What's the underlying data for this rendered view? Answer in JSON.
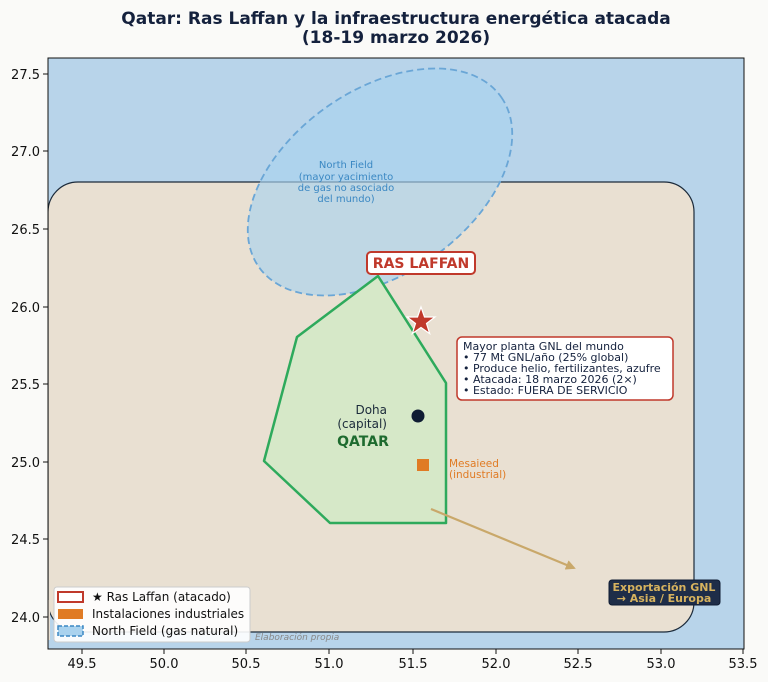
{
  "title_line1": "Qatar: Ras Laffan y la infraestructura energética atacada",
  "title_line2": "(18-19 marzo 2026)",
  "axes": {
    "x_ticks": [
      "49.5",
      "50.0",
      "50.5",
      "51.0",
      "51.5",
      "52.0",
      "52.5",
      "53.0",
      "53.5"
    ],
    "y_ticks": [
      "27.5",
      "27.0",
      "26.5",
      "26.0",
      "25.5",
      "25.0",
      "24.5",
      "24.0"
    ]
  },
  "north_field": {
    "lines": [
      "North Field",
      "(mayor yacimiento",
      "de gas no asociado",
      "del mundo)"
    ]
  },
  "ras_laffan": {
    "label": "RAS LAFFAN"
  },
  "info_box": {
    "lines": [
      "Mayor planta GNL del mundo",
      "• 77 Mt GNL/año (25% global)",
      "• Produce helio, fertilizantes, azufre",
      "• Atacada: 18 marzo 2026 (2×)",
      "• Estado: FUERA DE SERVICIO"
    ]
  },
  "doha": {
    "lines": [
      "Doha",
      "(capital)"
    ]
  },
  "country_label": "QATAR",
  "mesaieed": {
    "lines": [
      "Mesaieed",
      "(industrial)"
    ]
  },
  "export": {
    "lines": [
      "Exportación GNL",
      "→ Asia / Europa"
    ]
  },
  "legend": {
    "items": [
      {
        "label": "★ Ras Laffan (atacado)"
      },
      {
        "label": "Instalaciones industriales"
      },
      {
        "label": "North Field (gas natural)"
      }
    ]
  },
  "source": "Elaboración propia",
  "colors": {
    "sea": "#b8d4ea",
    "land": "#e9e0d2",
    "qatar_fill": "#d6e8c8",
    "qatar_border": "#2eaa5c",
    "ras_laffan": "#c0392b",
    "industrial": "#e07b24",
    "north_field": "#6aa6d6",
    "doha": "#0f1c33",
    "export_arrow": "#c9a86a"
  }
}
